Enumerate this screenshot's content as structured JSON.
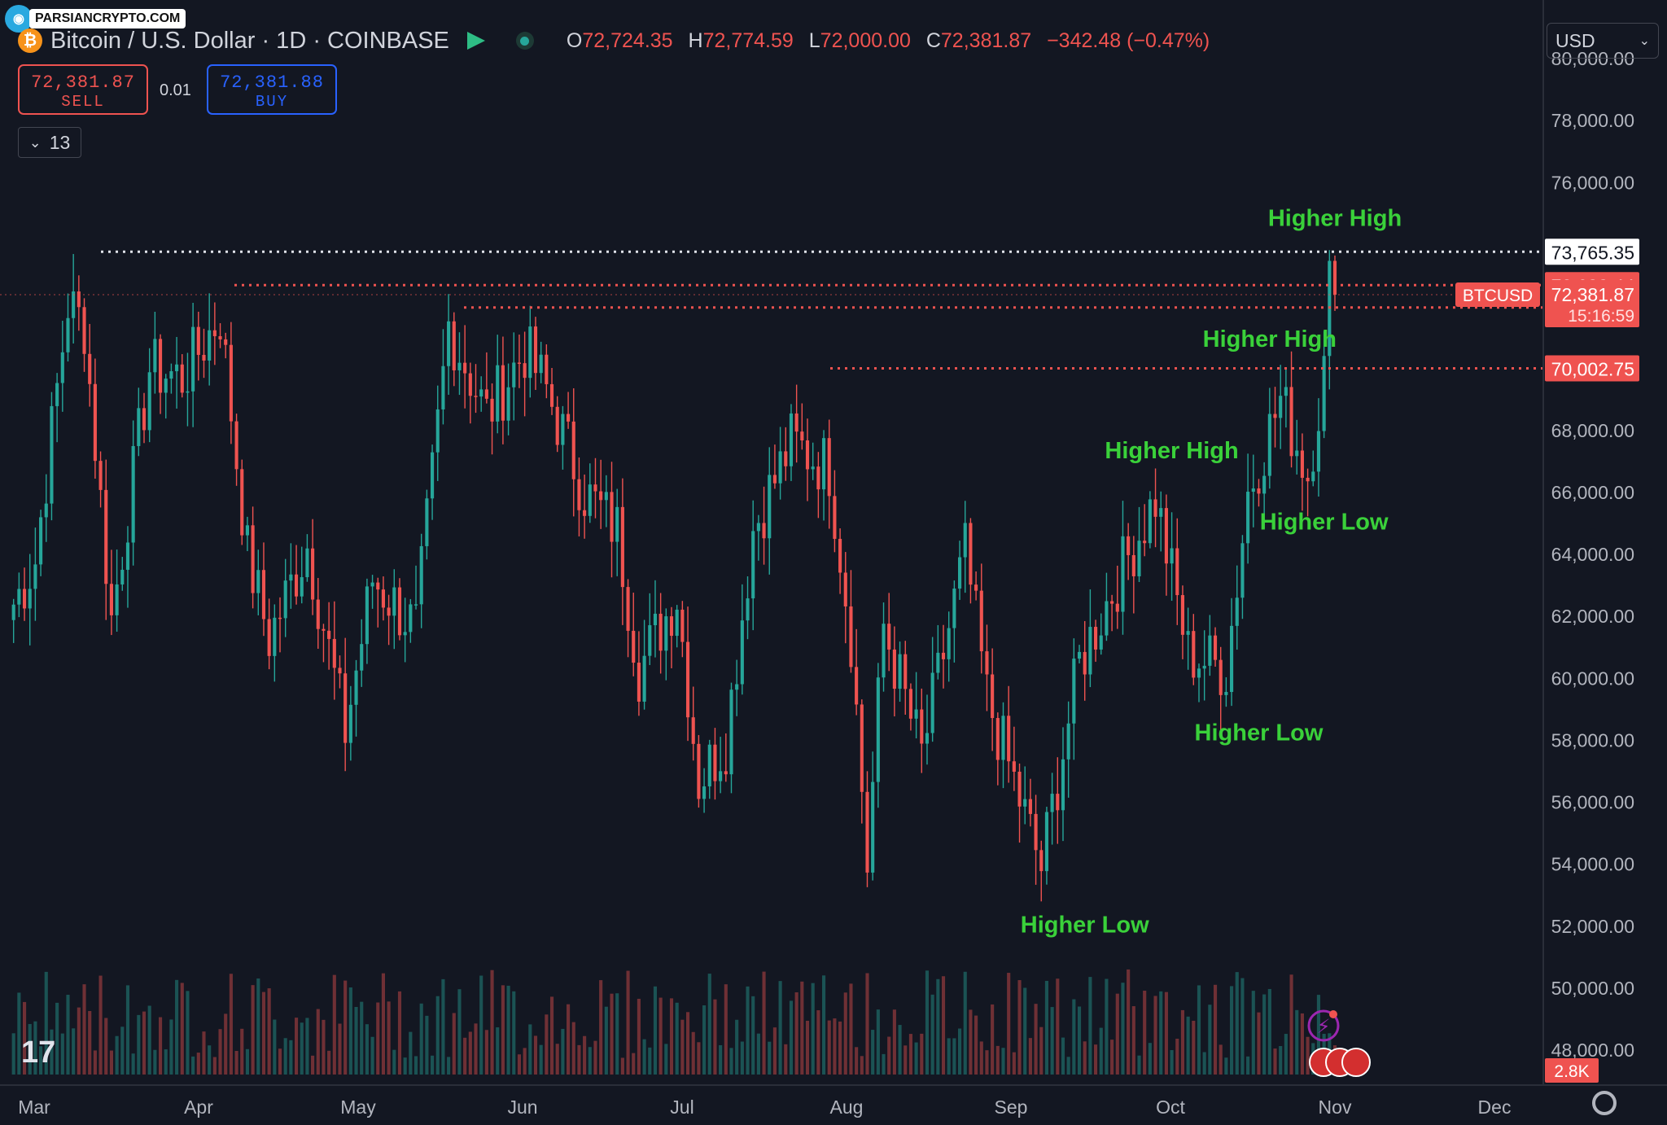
{
  "watermark": {
    "text": "PARSIANCRYPTO.COM",
    "logo_icon": "globe-logo-icon"
  },
  "header": {
    "coin_icon": "bitcoin-icon",
    "symbol_title": "Bitcoin / U.S. Dollar · 1D · COINBASE",
    "open_label": "O",
    "open": "72,724.35",
    "high_label": "H",
    "high": "72,774.59",
    "low_label": "L",
    "low": "72,000.00",
    "close_label": "C",
    "close": "72,381.87",
    "change": "−342.48 (−0.47%)"
  },
  "trade": {
    "sell_price": "72,381.87",
    "sell_label": "SELL",
    "spread": "0.01",
    "buy_price": "72,381.88",
    "buy_label": "BUY"
  },
  "indicators_toggle": {
    "count": "13"
  },
  "currency_select": {
    "value": "USD"
  },
  "colors": {
    "up": "#26a69a",
    "down": "#ef5350",
    "annotation": "#3ad13a",
    "background": "#131722"
  },
  "chart_data": {
    "type": "candlestick",
    "title": "Bitcoin / U.S. Dollar · 1D · COINBASE",
    "x_ticks": [
      "Mar",
      "Apr",
      "May",
      "Jun",
      "Jul",
      "Aug",
      "Sep",
      "Oct",
      "Nov",
      "Dec"
    ],
    "y_ticks": [
      "80,000.00",
      "78,000.00",
      "76,000.00",
      "68,000.00",
      "66,000.00",
      "64,000.00",
      "62,000.00",
      "60,000.00",
      "58,000.00",
      "56,000.00",
      "54,000.00",
      "52,000.00",
      "50,000.00",
      "48,000.00"
    ],
    "ylim": [
      47000,
      81200
    ],
    "closes_approx": [
      {
        "date": "2024-03-01",
        "close": 62400
      },
      {
        "date": "2024-03-05",
        "close": 63800
      },
      {
        "date": "2024-03-11",
        "close": 72100
      },
      {
        "date": "2024-03-14",
        "close": 71400
      },
      {
        "date": "2024-03-19",
        "close": 61900
      },
      {
        "date": "2024-03-26",
        "close": 70000
      },
      {
        "date": "2024-04-01",
        "close": 69700
      },
      {
        "date": "2024-04-08",
        "close": 71700
      },
      {
        "date": "2024-04-13",
        "close": 64000
      },
      {
        "date": "2024-04-17",
        "close": 61300
      },
      {
        "date": "2024-04-24",
        "close": 64300
      },
      {
        "date": "2024-05-01",
        "close": 58300
      },
      {
        "date": "2024-05-06",
        "close": 63200
      },
      {
        "date": "2024-05-14",
        "close": 61600
      },
      {
        "date": "2024-05-20",
        "close": 71400
      },
      {
        "date": "2024-05-27",
        "close": 68500
      },
      {
        "date": "2024-06-03",
        "close": 70600
      },
      {
        "date": "2024-06-07",
        "close": 69300
      },
      {
        "date": "2024-06-14",
        "close": 66000
      },
      {
        "date": "2024-06-20",
        "close": 64800
      },
      {
        "date": "2024-06-24",
        "close": 60300
      },
      {
        "date": "2024-07-01",
        "close": 62700
      },
      {
        "date": "2024-07-05",
        "close": 56700
      },
      {
        "date": "2024-07-10",
        "close": 58000
      },
      {
        "date": "2024-07-15",
        "close": 64800
      },
      {
        "date": "2024-07-22",
        "close": 67600
      },
      {
        "date": "2024-07-29",
        "close": 66800
      },
      {
        "date": "2024-08-02",
        "close": 61400
      },
      {
        "date": "2024-08-05",
        "close": 54000
      },
      {
        "date": "2024-08-08",
        "close": 61700
      },
      {
        "date": "2024-08-15",
        "close": 57500
      },
      {
        "date": "2024-08-23",
        "close": 64100
      },
      {
        "date": "2024-08-27",
        "close": 59400
      },
      {
        "date": "2024-09-06",
        "close": 53900
      },
      {
        "date": "2024-09-13",
        "close": 60500
      },
      {
        "date": "2024-09-20",
        "close": 63200
      },
      {
        "date": "2024-09-27",
        "close": 65800
      },
      {
        "date": "2024-10-03",
        "close": 60800
      },
      {
        "date": "2024-10-10",
        "close": 60300
      },
      {
        "date": "2024-10-14",
        "close": 66000
      },
      {
        "date": "2024-10-20",
        "close": 69000
      },
      {
        "date": "2024-10-25",
        "close": 66600
      },
      {
        "date": "2024-10-28",
        "close": 69900
      },
      {
        "date": "2024-10-29",
        "close": 72700
      },
      {
        "date": "2024-10-30",
        "close": 72381.87
      }
    ],
    "volume_last": "2.8K",
    "levels": [
      {
        "price": "73,765.35",
        "style": "white-dotted"
      },
      {
        "price": "72,688.44",
        "style": "red-dotted"
      },
      {
        "price": "71,967.06",
        "style": "red-dotted"
      },
      {
        "price": "70,002.75",
        "style": "red-dotted"
      }
    ],
    "last_price_label": {
      "symbol": "BTCUSD",
      "price": "72,381.87",
      "countdown": "15:16:59"
    },
    "annotations": [
      {
        "text": "Higher High",
        "date": "2024-10-30",
        "price": 74600
      },
      {
        "text": "Higher High",
        "date": "2024-10-18",
        "price": 70700
      },
      {
        "text": "Higher High",
        "date": "2024-09-30",
        "price": 67100
      },
      {
        "text": "Higher Low",
        "date": "2024-10-28",
        "price": 64800
      },
      {
        "text": "Higher Low",
        "date": "2024-10-16",
        "price": 58000
      },
      {
        "text": "Higher Low",
        "date": "2024-09-14",
        "price": 51800
      }
    ]
  }
}
